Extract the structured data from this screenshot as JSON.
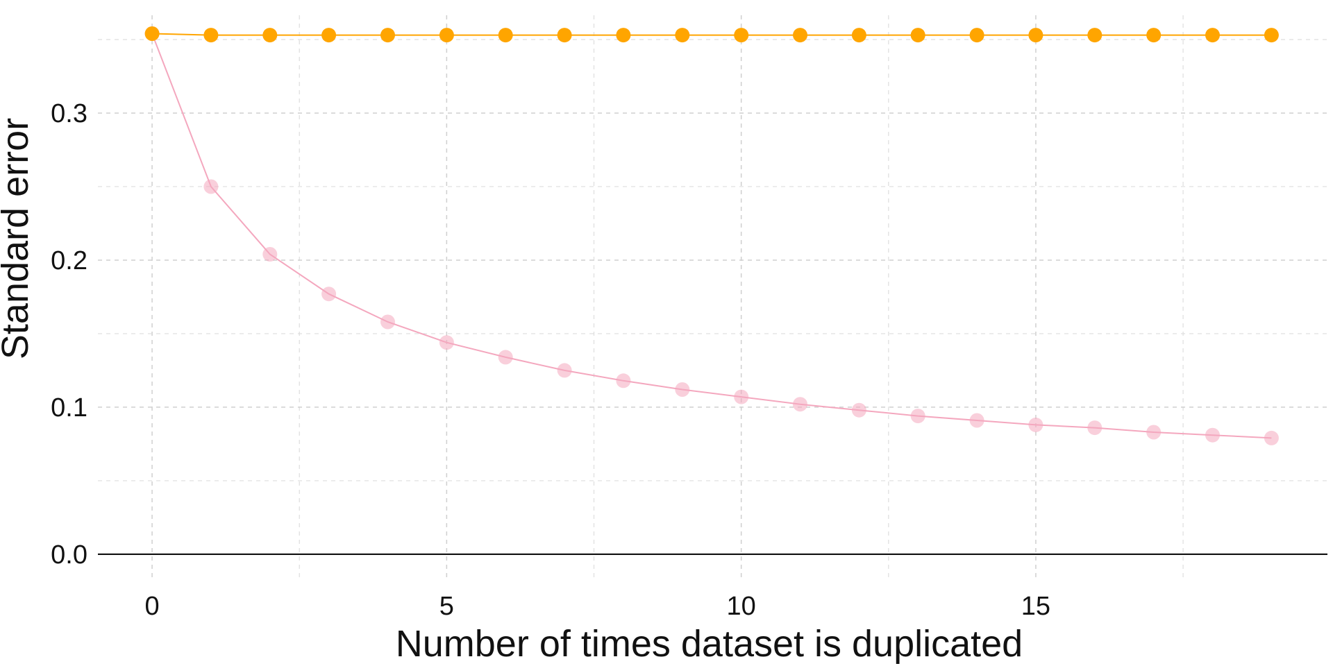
{
  "chart_data": {
    "type": "line",
    "title": "",
    "xlabel": "Number of times dataset is duplicated",
    "ylabel": "Standard error",
    "xlim": [
      -0.92,
      19.95
    ],
    "ylim": [
      -0.0175,
      0.3665
    ],
    "x_ticks": [
      0,
      5,
      10,
      15
    ],
    "x_tick_labels": [
      "0",
      "5",
      "10",
      "15"
    ],
    "y_ticks": [
      0.0,
      0.1,
      0.2,
      0.3
    ],
    "y_tick_labels": [
      "0.0",
      "0.1",
      "0.2",
      "0.3"
    ],
    "grid": true,
    "x": [
      0,
      1,
      2,
      3,
      4,
      5,
      6,
      7,
      8,
      9,
      10,
      11,
      12,
      13,
      14,
      15,
      16,
      17,
      18,
      19
    ],
    "series": [
      {
        "color": "#FFA500",
        "marker_opacity": 1.0,
        "values": [
          0.354,
          0.353,
          0.353,
          0.353,
          0.353,
          0.353,
          0.353,
          0.353,
          0.353,
          0.353,
          0.353,
          0.353,
          0.353,
          0.353,
          0.353,
          0.353,
          0.353,
          0.353,
          0.353,
          0.353
        ]
      },
      {
        "color": "#F4A7BE",
        "marker_opacity": 0.55,
        "values": [
          0.354,
          0.25,
          0.204,
          0.177,
          0.158,
          0.144,
          0.134,
          0.125,
          0.118,
          0.112,
          0.107,
          0.102,
          0.098,
          0.094,
          0.091,
          0.088,
          0.086,
          0.083,
          0.081,
          0.079
        ]
      }
    ]
  }
}
